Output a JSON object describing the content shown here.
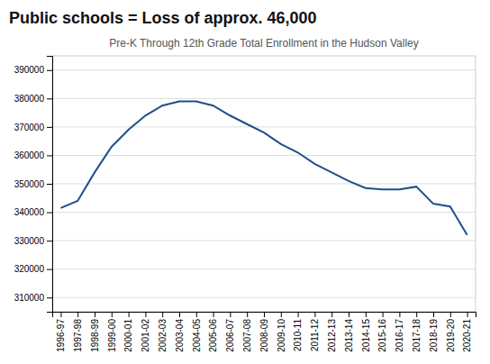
{
  "chart_data": {
    "type": "line",
    "title": "Public schools = Loss of approx. 46,000",
    "subtitle": "Pre-K Through 12th Grade Total Enrollment in the Hudson Valley",
    "categories": [
      "1996-97",
      "1997-98",
      "1998-99",
      "1999-00",
      "2000-01",
      "2001-02",
      "2002-03",
      "2003-04",
      "2004-05",
      "2005-06",
      "2006-07",
      "2007-08",
      "2008-09",
      "2009-10",
      "2010-11",
      "2011-12",
      "2012-13",
      "2013-14",
      "2014-15",
      "2015-16",
      "2016-17",
      "2017-18",
      "2018-19",
      "2019-20",
      "2020-21"
    ],
    "values": [
      341500,
      344000,
      354000,
      363000,
      369000,
      374000,
      377500,
      379000,
      379000,
      377500,
      374000,
      371000,
      368000,
      364000,
      361000,
      357000,
      354000,
      351000,
      348500,
      348000,
      348000,
      349000,
      343000,
      342000,
      332000
    ],
    "color": "#1f4e8c",
    "ylim": [
      305000,
      395000
    ],
    "yticks": [
      310000,
      320000,
      330000,
      340000,
      350000,
      360000,
      370000,
      380000,
      390000
    ],
    "grid": true
  }
}
